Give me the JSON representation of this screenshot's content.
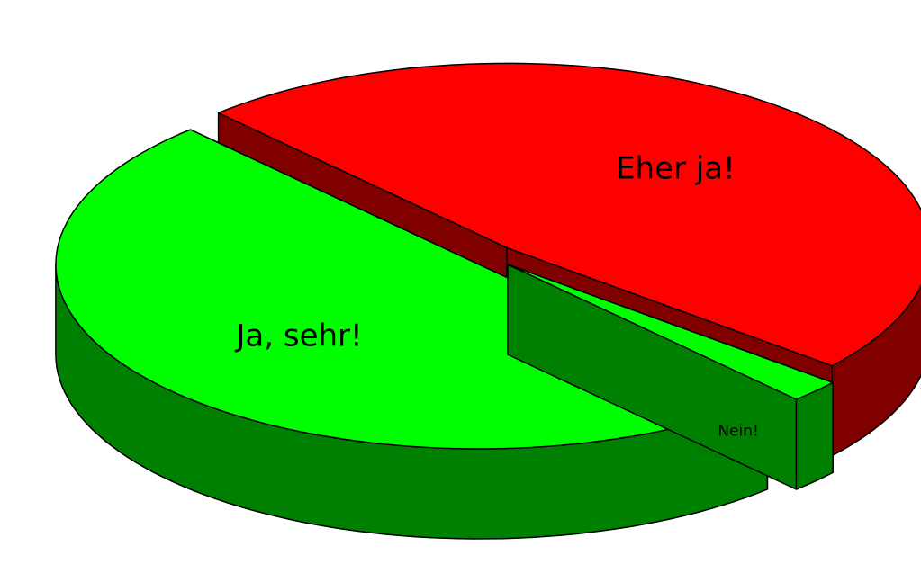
{
  "chart_data": {
    "type": "pie",
    "categories": [
      "Ja, sehr!",
      "Eher ja!",
      "Nein!"
    ],
    "values": [
      50,
      48,
      2
    ],
    "colors": [
      "#00ff00",
      "#ff0000",
      "#00ff00"
    ]
  }
}
